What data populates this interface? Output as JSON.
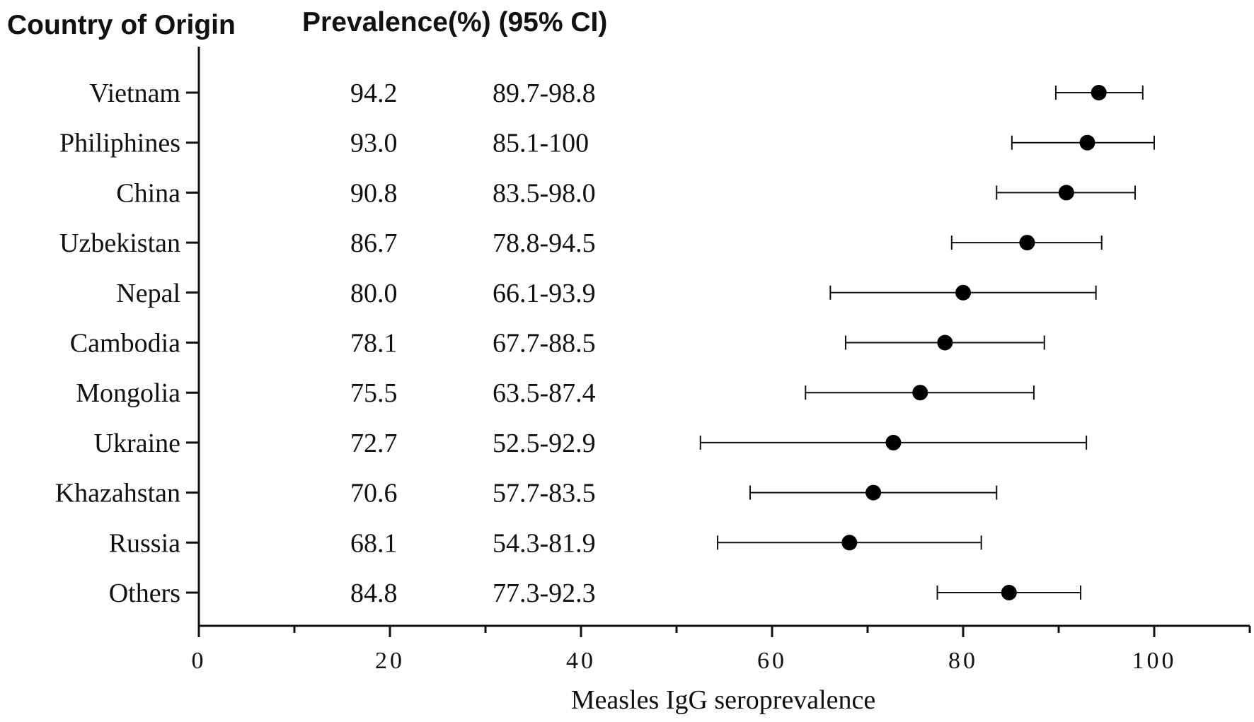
{
  "chart_data": {
    "type": "forest",
    "headers": {
      "country": "Country of Origin",
      "prevalence": "Prevalence(%) (95% CI)"
    },
    "xlabel": "Measles IgG seroprevalence",
    "xlim": [
      0,
      110
    ],
    "xticks_major": [
      0,
      20,
      40,
      60,
      80,
      100
    ],
    "xticks_major_labels": [
      "0",
      "20",
      "40",
      "60",
      "80",
      "100"
    ],
    "xticks_minor": [
      10,
      30,
      50,
      70,
      90,
      110
    ],
    "rows": [
      {
        "country": "Vietnam",
        "prevalence_label": "94.2",
        "ci_label": "89.7-98.8",
        "value": 94.2,
        "lower": 89.7,
        "upper": 98.8
      },
      {
        "country": "Philiphines",
        "prevalence_label": "93.0",
        "ci_label": "85.1-100",
        "value": 93.0,
        "lower": 85.1,
        "upper": 100
      },
      {
        "country": "China",
        "prevalence_label": "90.8",
        "ci_label": "83.5-98.0",
        "value": 90.8,
        "lower": 83.5,
        "upper": 98.0
      },
      {
        "country": "Uzbekistan",
        "prevalence_label": "86.7",
        "ci_label": "78.8-94.5",
        "value": 86.7,
        "lower": 78.8,
        "upper": 94.5
      },
      {
        "country": "Nepal",
        "prevalence_label": "80.0",
        "ci_label": "66.1-93.9",
        "value": 80.0,
        "lower": 66.1,
        "upper": 93.9
      },
      {
        "country": "Cambodia",
        "prevalence_label": "78.1",
        "ci_label": "67.7-88.5",
        "value": 78.1,
        "lower": 67.7,
        "upper": 88.5
      },
      {
        "country": "Mongolia",
        "prevalence_label": "75.5",
        "ci_label": "63.5-87.4",
        "value": 75.5,
        "lower": 63.5,
        "upper": 87.4
      },
      {
        "country": "Ukraine",
        "prevalence_label": "72.7",
        "ci_label": "52.5-92.9",
        "value": 72.7,
        "lower": 52.5,
        "upper": 92.9
      },
      {
        "country": "Khazahstan",
        "prevalence_label": "70.6",
        "ci_label": "57.7-83.5",
        "value": 70.6,
        "lower": 57.7,
        "upper": 83.5
      },
      {
        "country": "Russia",
        "prevalence_label": "68.1",
        "ci_label": "54.3-81.9",
        "value": 68.1,
        "lower": 54.3,
        "upper": 81.9
      },
      {
        "country": "Others",
        "prevalence_label": "84.8",
        "ci_label": "77.3-92.3",
        "value": 84.8,
        "lower": 77.3,
        "upper": 92.3
      }
    ],
    "colors": {
      "ink": "#111111",
      "point": "#000000"
    }
  }
}
